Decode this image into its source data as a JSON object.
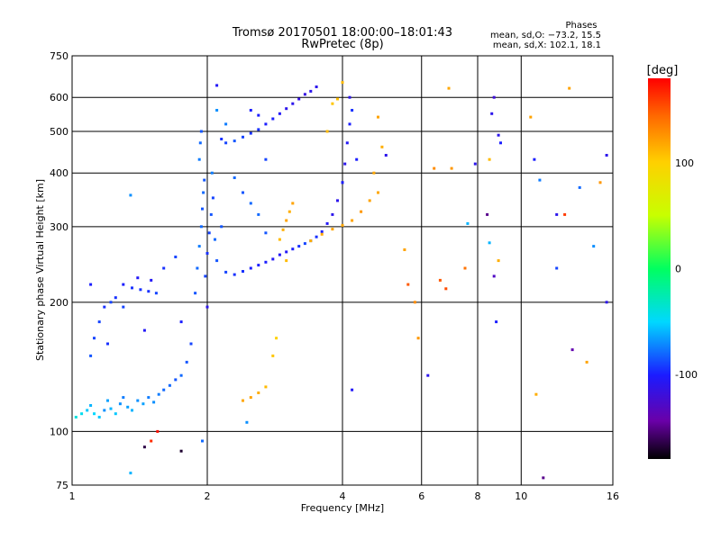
{
  "chart_data": {
    "type": "scatter",
    "title": "Tromsø 20170501 18:00:00–18:01:43",
    "subtitle": "RwPretec (8p)",
    "stats_title": "Phases",
    "stats_line1": "mean, sd,O: −73.2, 15.5",
    "stats_line2": "mean, sd,X: 102.1, 18.1",
    "xlabel": "Frequency [MHz]",
    "ylabel": "Stationary phase Virtual Height [km]",
    "x_scale": "log",
    "y_scale": "log",
    "xlim": [
      1,
      16
    ],
    "ylim": [
      75,
      750
    ],
    "x_ticks": [
      1,
      2,
      4,
      6,
      8,
      10,
      16
    ],
    "y_ticks": [
      75,
      100,
      200,
      300,
      400,
      500,
      600,
      750
    ],
    "grid_x": [
      2,
      4,
      6,
      8,
      10
    ],
    "grid_y": [
      100,
      200,
      300,
      400,
      500,
      600
    ],
    "colorbar": {
      "label": "[deg]",
      "range": [
        -180,
        180
      ],
      "ticks": [
        100,
        0,
        -100
      ]
    },
    "series": [
      {
        "name": "",
        "points": [
          {
            "x": 1.02,
            "y": 108,
            "v": -40
          },
          {
            "x": 1.05,
            "y": 110,
            "v": -45
          },
          {
            "x": 1.08,
            "y": 112,
            "v": -55
          },
          {
            "x": 1.1,
            "y": 115,
            "v": -60
          },
          {
            "x": 1.12,
            "y": 110,
            "v": -50
          },
          {
            "x": 1.15,
            "y": 108,
            "v": -55
          },
          {
            "x": 1.18,
            "y": 112,
            "v": -70
          },
          {
            "x": 1.2,
            "y": 118,
            "v": -65
          },
          {
            "x": 1.22,
            "y": 113,
            "v": -60
          },
          {
            "x": 1.25,
            "y": 110,
            "v": -55
          },
          {
            "x": 1.28,
            "y": 116,
            "v": -70
          },
          {
            "x": 1.3,
            "y": 120,
            "v": -75
          },
          {
            "x": 1.33,
            "y": 114,
            "v": -65
          },
          {
            "x": 1.36,
            "y": 112,
            "v": -60
          },
          {
            "x": 1.4,
            "y": 118,
            "v": -70
          },
          {
            "x": 1.44,
            "y": 116,
            "v": -65
          },
          {
            "x": 1.48,
            "y": 120,
            "v": -75
          },
          {
            "x": 1.52,
            "y": 117,
            "v": -70
          },
          {
            "x": 1.56,
            "y": 122,
            "v": -75
          },
          {
            "x": 1.6,
            "y": 125,
            "v": -80
          },
          {
            "x": 1.65,
            "y": 128,
            "v": -80
          },
          {
            "x": 1.7,
            "y": 132,
            "v": -85
          },
          {
            "x": 1.75,
            "y": 135,
            "v": -80
          },
          {
            "x": 1.8,
            "y": 145,
            "v": -85
          },
          {
            "x": 1.84,
            "y": 160,
            "v": -90
          },
          {
            "x": 1.1,
            "y": 150,
            "v": -85
          },
          {
            "x": 1.12,
            "y": 165,
            "v": -90
          },
          {
            "x": 1.15,
            "y": 180,
            "v": -90
          },
          {
            "x": 1.18,
            "y": 195,
            "v": -95
          },
          {
            "x": 1.22,
            "y": 200,
            "v": -90
          },
          {
            "x": 1.25,
            "y": 205,
            "v": -95
          },
          {
            "x": 1.3,
            "y": 195,
            "v": -90
          },
          {
            "x": 1.2,
            "y": 160,
            "v": -95
          },
          {
            "x": 1.1,
            "y": 220,
            "v": -100
          },
          {
            "x": 1.3,
            "y": 220,
            "v": -100
          },
          {
            "x": 1.36,
            "y": 216,
            "v": -95
          },
          {
            "x": 1.42,
            "y": 214,
            "v": -95
          },
          {
            "x": 1.48,
            "y": 212,
            "v": -95
          },
          {
            "x": 1.54,
            "y": 210,
            "v": -90
          },
          {
            "x": 1.4,
            "y": 228,
            "v": -105
          },
          {
            "x": 1.5,
            "y": 225,
            "v": -105
          },
          {
            "x": 1.6,
            "y": 240,
            "v": -95
          },
          {
            "x": 1.7,
            "y": 255,
            "v": -90
          },
          {
            "x": 1.75,
            "y": 180,
            "v": -100
          },
          {
            "x": 1.45,
            "y": 172,
            "v": -105
          },
          {
            "x": 1.35,
            "y": 355,
            "v": -70
          },
          {
            "x": 1.88,
            "y": 210,
            "v": -85
          },
          {
            "x": 1.9,
            "y": 240,
            "v": -80
          },
          {
            "x": 1.92,
            "y": 270,
            "v": -75
          },
          {
            "x": 1.94,
            "y": 300,
            "v": -80
          },
          {
            "x": 1.95,
            "y": 330,
            "v": -85
          },
          {
            "x": 1.96,
            "y": 360,
            "v": -80
          },
          {
            "x": 1.97,
            "y": 385,
            "v": -85
          },
          {
            "x": 1.98,
            "y": 230,
            "v": -90
          },
          {
            "x": 2.0,
            "y": 260,
            "v": -95
          },
          {
            "x": 2.02,
            "y": 290,
            "v": -90
          },
          {
            "x": 2.04,
            "y": 320,
            "v": -85
          },
          {
            "x": 2.06,
            "y": 350,
            "v": -90
          },
          {
            "x": 2.08,
            "y": 280,
            "v": -80
          },
          {
            "x": 2.1,
            "y": 250,
            "v": -85
          },
          {
            "x": 1.92,
            "y": 430,
            "v": -75
          },
          {
            "x": 1.93,
            "y": 470,
            "v": -80
          },
          {
            "x": 1.94,
            "y": 500,
            "v": -85
          },
          {
            "x": 2.0,
            "y": 195,
            "v": -110
          },
          {
            "x": 2.05,
            "y": 400,
            "v": -75
          },
          {
            "x": 2.15,
            "y": 300,
            "v": -85
          },
          {
            "x": 2.2,
            "y": 235,
            "v": -90
          },
          {
            "x": 2.3,
            "y": 232,
            "v": -95
          },
          {
            "x": 2.4,
            "y": 236,
            "v": -95
          },
          {
            "x": 2.5,
            "y": 240,
            "v": -100
          },
          {
            "x": 2.6,
            "y": 244,
            "v": -100
          },
          {
            "x": 2.7,
            "y": 248,
            "v": -100
          },
          {
            "x": 2.8,
            "y": 252,
            "v": -105
          },
          {
            "x": 2.9,
            "y": 258,
            "v": -105
          },
          {
            "x": 3.0,
            "y": 262,
            "v": -105
          },
          {
            "x": 3.1,
            "y": 266,
            "v": -100
          },
          {
            "x": 3.2,
            "y": 270,
            "v": -95
          },
          {
            "x": 3.3,
            "y": 274,
            "v": -90
          },
          {
            "x": 3.4,
            "y": 278,
            "v": -90
          },
          {
            "x": 3.5,
            "y": 284,
            "v": -95
          },
          {
            "x": 3.6,
            "y": 292,
            "v": -100
          },
          {
            "x": 3.7,
            "y": 305,
            "v": -105
          },
          {
            "x": 3.8,
            "y": 320,
            "v": -110
          },
          {
            "x": 3.9,
            "y": 345,
            "v": -110
          },
          {
            "x": 4.0,
            "y": 380,
            "v": -115
          },
          {
            "x": 4.05,
            "y": 420,
            "v": -110
          },
          {
            "x": 4.1,
            "y": 470,
            "v": -105
          },
          {
            "x": 4.15,
            "y": 520,
            "v": -100
          },
          {
            "x": 4.2,
            "y": 560,
            "v": -95
          },
          {
            "x": 2.15,
            "y": 480,
            "v": -95
          },
          {
            "x": 2.2,
            "y": 470,
            "v": -90
          },
          {
            "x": 2.3,
            "y": 475,
            "v": -85
          },
          {
            "x": 2.4,
            "y": 485,
            "v": -90
          },
          {
            "x": 2.5,
            "y": 495,
            "v": -95
          },
          {
            "x": 2.6,
            "y": 505,
            "v": -95
          },
          {
            "x": 2.7,
            "y": 520,
            "v": -100
          },
          {
            "x": 2.8,
            "y": 535,
            "v": -100
          },
          {
            "x": 2.9,
            "y": 550,
            "v": -105
          },
          {
            "x": 3.0,
            "y": 565,
            "v": -110
          },
          {
            "x": 3.1,
            "y": 580,
            "v": -110
          },
          {
            "x": 3.2,
            "y": 595,
            "v": -115
          },
          {
            "x": 3.3,
            "y": 610,
            "v": -115
          },
          {
            "x": 3.4,
            "y": 620,
            "v": -110
          },
          {
            "x": 3.5,
            "y": 635,
            "v": -110
          },
          {
            "x": 2.5,
            "y": 560,
            "v": -100
          },
          {
            "x": 2.6,
            "y": 545,
            "v": -100
          },
          {
            "x": 2.1,
            "y": 640,
            "v": -105
          },
          {
            "x": 2.2,
            "y": 520,
            "v": -75
          },
          {
            "x": 2.1,
            "y": 560,
            "v": -70
          },
          {
            "x": 2.7,
            "y": 290,
            "v": -85
          },
          {
            "x": 2.6,
            "y": 320,
            "v": -80
          },
          {
            "x": 2.5,
            "y": 340,
            "v": -80
          },
          {
            "x": 2.4,
            "y": 360,
            "v": -85
          },
          {
            "x": 2.3,
            "y": 390,
            "v": -80
          },
          {
            "x": 2.45,
            "y": 105,
            "v": -70
          },
          {
            "x": 2.7,
            "y": 430,
            "v": -90
          },
          {
            "x": 4.2,
            "y": 125,
            "v": -105
          },
          {
            "x": 4.0,
            "y": 380,
            "v": -100
          },
          {
            "x": 4.15,
            "y": 600,
            "v": -110
          },
          {
            "x": 4.3,
            "y": 430,
            "v": -100
          },
          {
            "x": 2.9,
            "y": 280,
            "v": 110
          },
          {
            "x": 2.95,
            "y": 295,
            "v": 115
          },
          {
            "x": 3.0,
            "y": 310,
            "v": 120
          },
          {
            "x": 3.05,
            "y": 325,
            "v": 115
          },
          {
            "x": 3.1,
            "y": 340,
            "v": 120
          },
          {
            "x": 3.0,
            "y": 250,
            "v": 110
          },
          {
            "x": 3.4,
            "y": 278,
            "v": 115
          },
          {
            "x": 3.6,
            "y": 288,
            "v": 118
          },
          {
            "x": 3.8,
            "y": 296,
            "v": 120
          },
          {
            "x": 4.0,
            "y": 302,
            "v": 118
          },
          {
            "x": 4.2,
            "y": 310,
            "v": 120
          },
          {
            "x": 4.4,
            "y": 325,
            "v": 125
          },
          {
            "x": 4.6,
            "y": 345,
            "v": 120
          },
          {
            "x": 4.8,
            "y": 360,
            "v": 118
          },
          {
            "x": 2.5,
            "y": 120,
            "v": 120
          },
          {
            "x": 2.6,
            "y": 123,
            "v": 115
          },
          {
            "x": 2.7,
            "y": 127,
            "v": 110
          },
          {
            "x": 2.8,
            "y": 150,
            "v": 105
          },
          {
            "x": 2.85,
            "y": 165,
            "v": 100
          },
          {
            "x": 2.4,
            "y": 118,
            "v": 118
          },
          {
            "x": 3.8,
            "y": 580,
            "v": 105
          },
          {
            "x": 3.9,
            "y": 595,
            "v": 108
          },
          {
            "x": 4.0,
            "y": 650,
            "v": 110
          },
          {
            "x": 4.9,
            "y": 460,
            "v": 115
          },
          {
            "x": 4.8,
            "y": 540,
            "v": 120
          },
          {
            "x": 4.7,
            "y": 400,
            "v": 118
          },
          {
            "x": 3.7,
            "y": 500,
            "v": 110
          },
          {
            "x": 1.45,
            "y": 92,
            "v": -165
          },
          {
            "x": 1.5,
            "y": 95,
            "v": 165
          },
          {
            "x": 1.55,
            "y": 100,
            "v": 175
          },
          {
            "x": 1.75,
            "y": 90,
            "v": -170
          },
          {
            "x": 1.35,
            "y": 80,
            "v": -60
          },
          {
            "x": 1.95,
            "y": 95,
            "v": -80
          },
          {
            "x": 5.0,
            "y": 440,
            "v": -110
          },
          {
            "x": 5.5,
            "y": 265,
            "v": 120
          },
          {
            "x": 5.6,
            "y": 220,
            "v": 150
          },
          {
            "x": 5.8,
            "y": 200,
            "v": 130
          },
          {
            "x": 5.9,
            "y": 165,
            "v": 125
          },
          {
            "x": 6.2,
            "y": 135,
            "v": -110
          },
          {
            "x": 6.4,
            "y": 410,
            "v": 130
          },
          {
            "x": 6.6,
            "y": 225,
            "v": 150
          },
          {
            "x": 6.8,
            "y": 215,
            "v": 155
          },
          {
            "x": 6.9,
            "y": 630,
            "v": 118
          },
          {
            "x": 7.0,
            "y": 410,
            "v": 125
          },
          {
            "x": 7.5,
            "y": 240,
            "v": 140
          },
          {
            "x": 7.6,
            "y": 305,
            "v": -60
          },
          {
            "x": 7.9,
            "y": 420,
            "v": -110
          },
          {
            "x": 8.4,
            "y": 320,
            "v": -150
          },
          {
            "x": 8.5,
            "y": 430,
            "v": 110
          },
          {
            "x": 8.6,
            "y": 550,
            "v": -110
          },
          {
            "x": 8.7,
            "y": 600,
            "v": -120
          },
          {
            "x": 8.8,
            "y": 180,
            "v": -100
          },
          {
            "x": 8.9,
            "y": 490,
            "v": -110
          },
          {
            "x": 8.7,
            "y": 230,
            "v": -130
          },
          {
            "x": 8.9,
            "y": 250,
            "v": 115
          },
          {
            "x": 8.5,
            "y": 275,
            "v": -60
          },
          {
            "x": 9.0,
            "y": 470,
            "v": -100
          },
          {
            "x": 10.5,
            "y": 540,
            "v": 120
          },
          {
            "x": 10.7,
            "y": 430,
            "v": -100
          },
          {
            "x": 11.0,
            "y": 385,
            "v": -75
          },
          {
            "x": 11.2,
            "y": 78,
            "v": -150
          },
          {
            "x": 10.8,
            "y": 122,
            "v": 115
          },
          {
            "x": 12.0,
            "y": 320,
            "v": -110
          },
          {
            "x": 12.5,
            "y": 320,
            "v": 160
          },
          {
            "x": 12.8,
            "y": 630,
            "v": 120
          },
          {
            "x": 13.0,
            "y": 155,
            "v": -140
          },
          {
            "x": 13.5,
            "y": 370,
            "v": -80
          },
          {
            "x": 14.0,
            "y": 145,
            "v": 120
          },
          {
            "x": 14.5,
            "y": 270,
            "v": -70
          },
          {
            "x": 15.0,
            "y": 380,
            "v": 125
          },
          {
            "x": 15.5,
            "y": 440,
            "v": -110
          },
          {
            "x": 15.5,
            "y": 200,
            "v": -110
          },
          {
            "x": 12.0,
            "y": 240,
            "v": -90
          }
        ]
      }
    ]
  }
}
